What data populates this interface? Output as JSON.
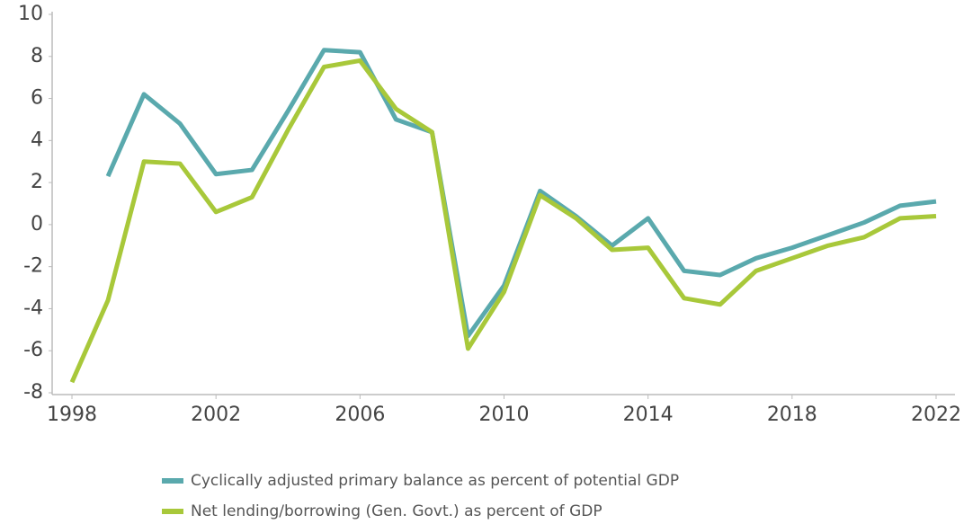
{
  "chart_data": {
    "type": "line",
    "x": [
      1998,
      1999,
      2000,
      2001,
      2002,
      2003,
      2004,
      2005,
      2006,
      2007,
      2008,
      2009,
      2010,
      2011,
      2012,
      2013,
      2014,
      2015,
      2016,
      2017,
      2018,
      2019,
      2020,
      2021,
      2022
    ],
    "series": [
      {
        "name": "Cyclically adjusted primary balance as percent of potential GDP",
        "color": "#5aa9ad",
        "values": [
          null,
          2.3,
          6.2,
          4.8,
          2.4,
          2.6,
          5.4,
          8.3,
          8.2,
          5.0,
          4.4,
          -5.3,
          -2.9,
          1.6,
          0.4,
          -1.0,
          0.3,
          -2.2,
          -2.4,
          -1.6,
          -1.1,
          -0.5,
          0.1,
          0.9,
          1.1
        ]
      },
      {
        "name": "Net lending/borrowing (Gen. Govt.) as percent of GDP",
        "color": "#a8c83a",
        "values": [
          -7.5,
          -3.6,
          3.0,
          2.9,
          0.6,
          1.3,
          4.5,
          7.5,
          7.8,
          5.5,
          4.4,
          -5.9,
          -3.2,
          1.4,
          0.3,
          -1.2,
          -1.1,
          -3.5,
          -3.8,
          -2.2,
          -1.6,
          -1.0,
          -0.6,
          0.3,
          0.4
        ]
      }
    ],
    "xlim": [
      1997.5,
      2022.5
    ],
    "xticks": [
      1998,
      2002,
      2006,
      2010,
      2014,
      2018,
      2022
    ],
    "ylim": [
      -8,
      10
    ],
    "yticks": [
      -8,
      -6,
      -4,
      -2,
      0,
      2,
      4,
      6,
      8,
      10
    ]
  }
}
